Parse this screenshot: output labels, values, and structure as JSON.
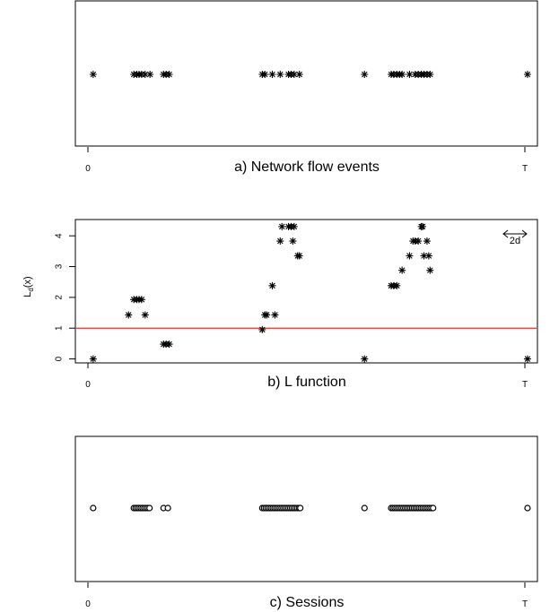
{
  "chart_data": [
    {
      "type": "scatter",
      "panel": "a",
      "caption": "a) Network flow events",
      "xlim": [
        0,
        100
      ],
      "x_ticks": [
        {
          "value": 0,
          "label": "0"
        },
        {
          "value": 100,
          "label": "T"
        }
      ],
      "marker": "asterisk",
      "y": 0,
      "points": [
        1.2,
        10.5,
        11.2,
        11.7,
        12.3,
        13.1,
        14.2,
        17.3,
        17.9,
        18.6,
        39.9,
        40.5,
        42.2,
        44.0,
        45.9,
        46.5,
        47.2,
        48.4,
        63.3,
        69.4,
        70.0,
        70.7,
        71.3,
        71.9,
        73.6,
        74.9,
        75.6,
        76.3,
        76.9,
        77.6,
        78.3,
        100.6
      ]
    },
    {
      "type": "scatter",
      "panel": "b",
      "caption": "b) L function",
      "ylabel": "L",
      "ylabel_sub": "d",
      "ylabel_tail": "(x)",
      "xlim": [
        0,
        100
      ],
      "ylim": [
        -0.1,
        4.5
      ],
      "x_ticks": [
        {
          "value": 0,
          "label": "0"
        },
        {
          "value": 100,
          "label": "T"
        }
      ],
      "y_ticks": [
        0,
        1,
        2,
        3,
        4
      ],
      "reference_line": 1,
      "annotation": "2d",
      "marker": "asterisk",
      "points": [
        {
          "x": 1.2,
          "y": 0
        },
        {
          "x": 9.3,
          "y": 1.43
        },
        {
          "x": 10.5,
          "y": 1.93
        },
        {
          "x": 11.2,
          "y": 1.93
        },
        {
          "x": 11.7,
          "y": 1.93
        },
        {
          "x": 12.3,
          "y": 1.93
        },
        {
          "x": 13.1,
          "y": 1.43
        },
        {
          "x": 17.3,
          "y": 0.48
        },
        {
          "x": 17.9,
          "y": 0.48
        },
        {
          "x": 18.6,
          "y": 0.48
        },
        {
          "x": 39.9,
          "y": 0.95
        },
        {
          "x": 40.5,
          "y": 1.43
        },
        {
          "x": 40.9,
          "y": 1.43
        },
        {
          "x": 42.2,
          "y": 2.38
        },
        {
          "x": 42.8,
          "y": 1.43
        },
        {
          "x": 44.0,
          "y": 3.83
        },
        {
          "x": 44.4,
          "y": 4.3
        },
        {
          "x": 45.9,
          "y": 4.3
        },
        {
          "x": 46.5,
          "y": 4.3
        },
        {
          "x": 46.9,
          "y": 3.83
        },
        {
          "x": 47.2,
          "y": 4.3
        },
        {
          "x": 48.0,
          "y": 3.35
        },
        {
          "x": 48.4,
          "y": 3.35
        },
        {
          "x": 63.3,
          "y": 0
        },
        {
          "x": 69.4,
          "y": 2.38
        },
        {
          "x": 70.0,
          "y": 2.38
        },
        {
          "x": 70.7,
          "y": 2.38
        },
        {
          "x": 71.9,
          "y": 2.88
        },
        {
          "x": 73.6,
          "y": 3.35
        },
        {
          "x": 74.4,
          "y": 3.83
        },
        {
          "x": 74.9,
          "y": 3.83
        },
        {
          "x": 75.6,
          "y": 3.83
        },
        {
          "x": 76.3,
          "y": 4.3
        },
        {
          "x": 76.6,
          "y": 4.3
        },
        {
          "x": 76.9,
          "y": 3.35
        },
        {
          "x": 77.6,
          "y": 3.83
        },
        {
          "x": 78.0,
          "y": 3.35
        },
        {
          "x": 78.3,
          "y": 2.88
        },
        {
          "x": 100.6,
          "y": 0
        }
      ]
    },
    {
      "type": "scatter",
      "panel": "c",
      "caption": "c) Sessions",
      "xlim": [
        0,
        100
      ],
      "x_ticks": [
        {
          "value": 0,
          "label": "0"
        },
        {
          "value": 100,
          "label": "T"
        }
      ],
      "marker": "open-circle",
      "y": 0,
      "points": [
        1.2,
        10.5,
        10.9,
        11.3,
        11.7,
        12.1,
        12.5,
        12.9,
        13.3,
        13.7,
        14.1,
        17.3,
        18.3,
        39.9,
        40.3,
        40.7,
        41.1,
        41.5,
        41.9,
        42.3,
        42.7,
        43.1,
        43.5,
        43.9,
        44.3,
        44.7,
        45.1,
        45.5,
        45.9,
        46.3,
        46.7,
        47.1,
        47.5,
        47.9,
        48.3,
        48.6,
        63.3,
        69.4,
        69.8,
        70.2,
        70.6,
        71.0,
        71.4,
        71.8,
        72.2,
        72.6,
        73.0,
        73.4,
        73.8,
        74.2,
        74.6,
        75.0,
        75.4,
        75.8,
        76.2,
        76.6,
        77.0,
        77.4,
        77.8,
        78.2,
        78.6,
        79.0,
        100.6
      ]
    }
  ]
}
